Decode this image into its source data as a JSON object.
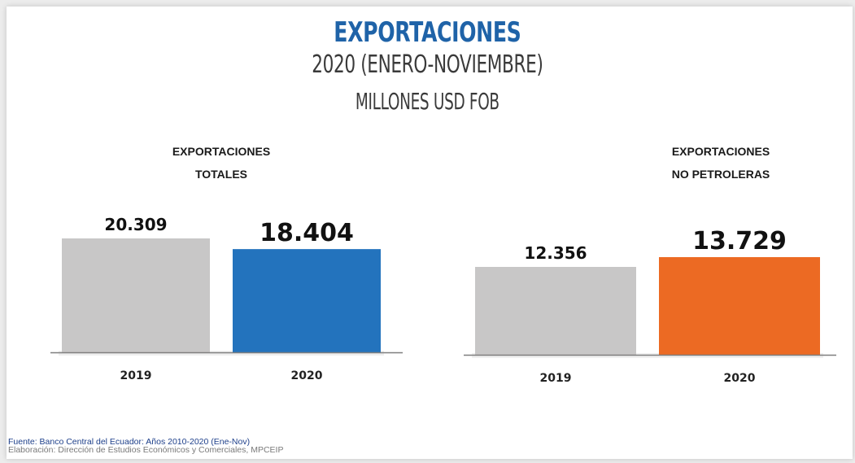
{
  "header": {
    "title": "EXPORTACIONES",
    "subtitle1": "2020 (ENERO-NOVIEMBRE)",
    "subtitle2": "MILLONES USD FOB"
  },
  "chart_data": [
    {
      "type": "bar",
      "title_lines": [
        "EXPORTACIONES",
        "TOTALES"
      ],
      "categories": [
        "2019",
        "2020"
      ],
      "values": [
        20309,
        18404
      ],
      "value_labels": [
        "20.309",
        "18.404"
      ],
      "colors": [
        "#c8c7c7",
        "#2373bd"
      ],
      "ylim": [
        0,
        21000
      ],
      "grid": false,
      "legend": "none"
    },
    {
      "type": "bar",
      "title_lines": [
        "EXPORTACIONES",
        "NO PETROLERAS"
      ],
      "categories": [
        "2019",
        "2020"
      ],
      "values": [
        12356,
        13729
      ],
      "value_labels": [
        "12.356",
        "13.729"
      ],
      "colors": [
        "#c8c7c7",
        "#ec6a23"
      ],
      "ylim": [
        0,
        21000
      ],
      "grid": false,
      "legend": "none"
    }
  ],
  "footer": {
    "source": "Fuente: Banco Central del Ecuador: Años 2010-2020 (Ene-Nov)",
    "credit": "Elaboración: Dirección de Estudios Económicos y Comerciales, MPCEIP"
  }
}
